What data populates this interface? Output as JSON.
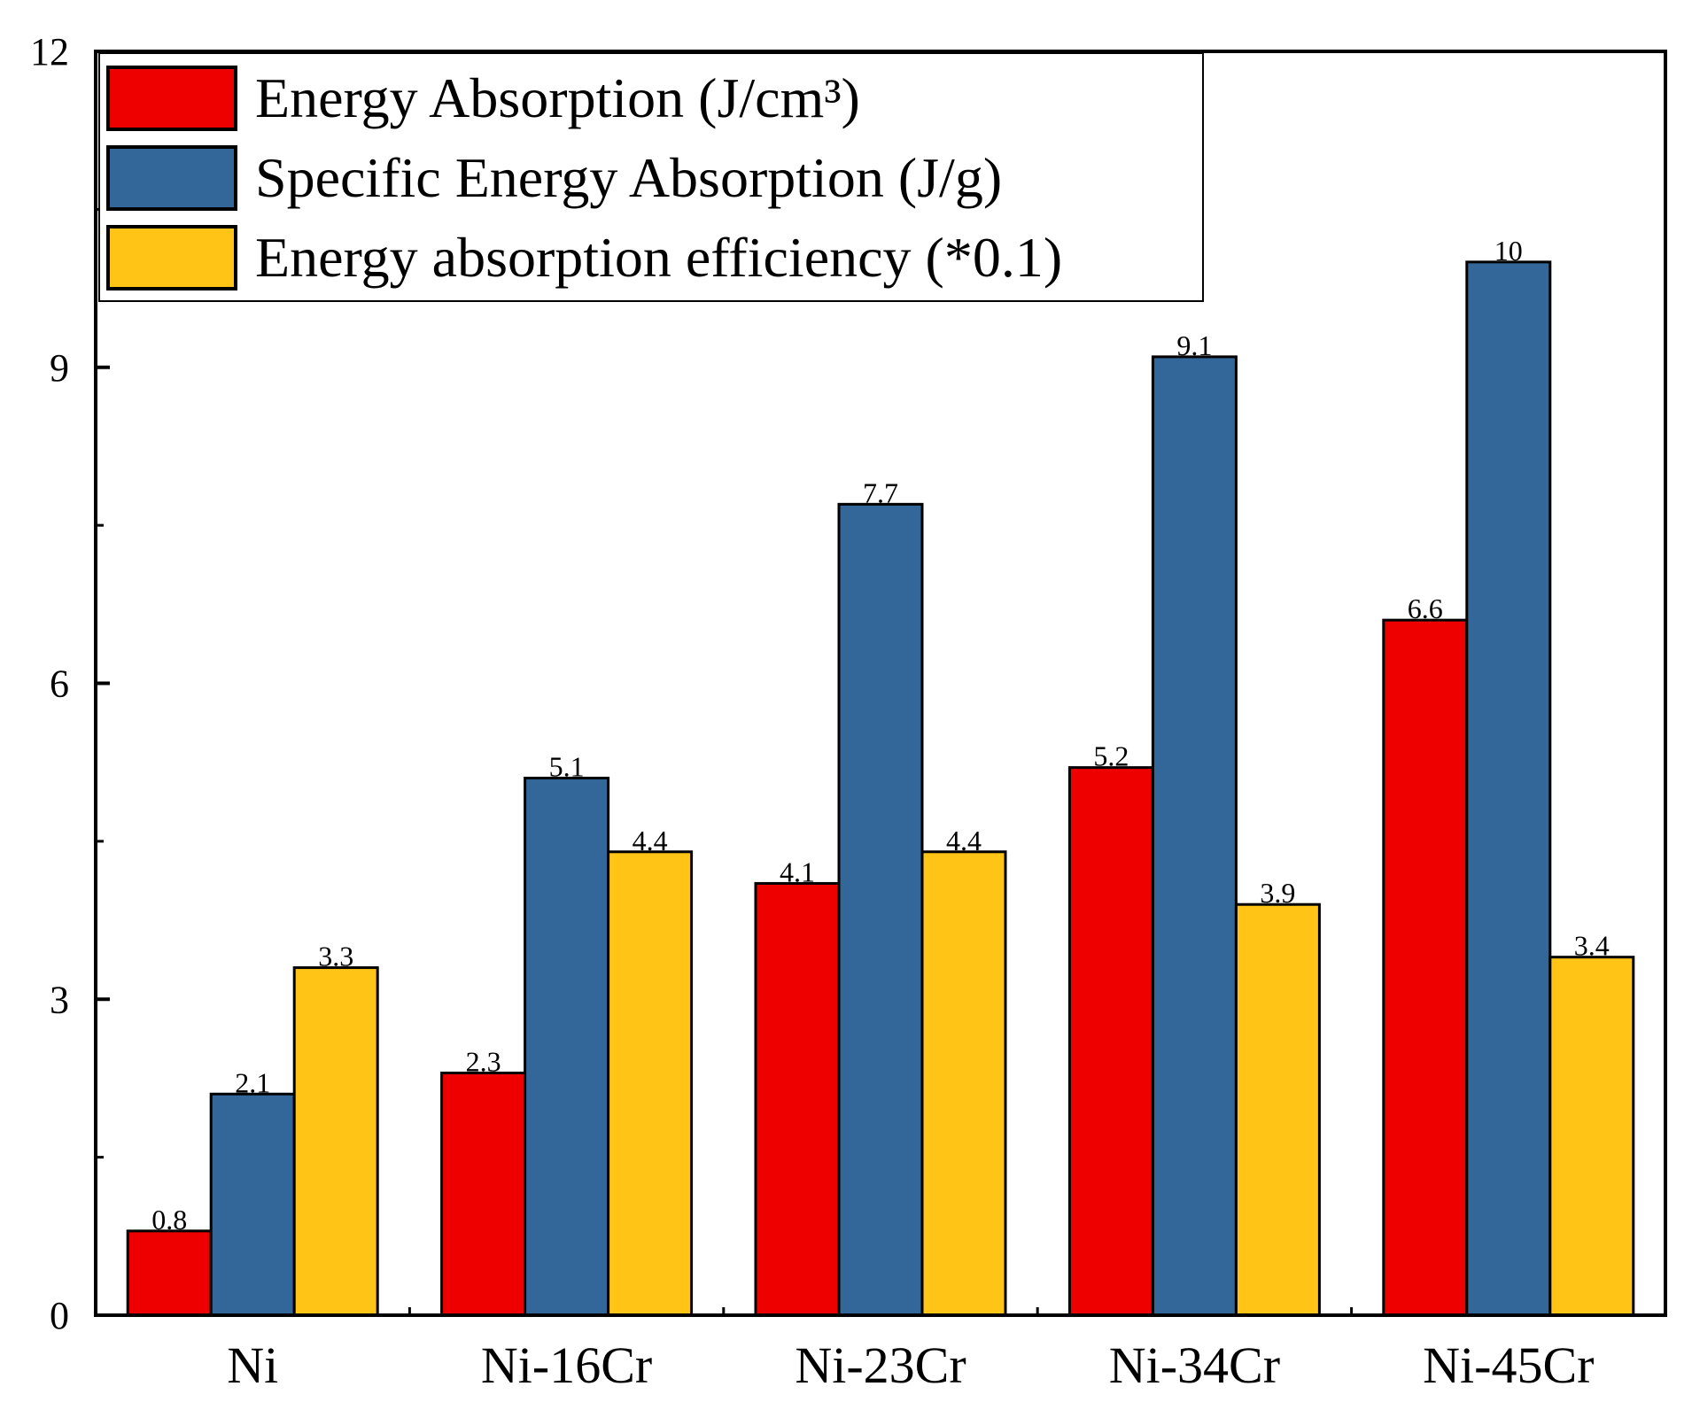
{
  "chart_data": {
    "type": "bar",
    "title": "",
    "xlabel": "",
    "ylabel": "",
    "ylim": [
      0,
      12
    ],
    "yticks": [
      0,
      3,
      6,
      9,
      12
    ],
    "categories": [
      "Ni",
      "Ni-16Cr",
      "Ni-23Cr",
      "Ni-34Cr",
      "Ni-45Cr"
    ],
    "legend_position": "top-left",
    "series": [
      {
        "name": "Energy Absorption (J/cm³)",
        "color": "#ee0000",
        "values": [
          0.8,
          2.3,
          4.1,
          5.2,
          6.6
        ],
        "labels": [
          "0.8",
          "2.3",
          "4.1",
          "5.2",
          "6.6"
        ]
      },
      {
        "name": "Specific Energy Absorption (J/g)",
        "color": "#336699",
        "values": [
          2.1,
          5.1,
          7.7,
          9.1,
          10
        ],
        "labels": [
          "2.1",
          "5.1",
          "7.7",
          "9.1",
          "10"
        ]
      },
      {
        "name": "Energy absorption efficiency (*0.1)",
        "color": "#ffc416",
        "values": [
          3.3,
          4.4,
          4.4,
          3.9,
          3.4
        ],
        "labels": [
          "3.3",
          "4.4",
          "4.4",
          "3.9",
          "3.4"
        ]
      }
    ]
  }
}
